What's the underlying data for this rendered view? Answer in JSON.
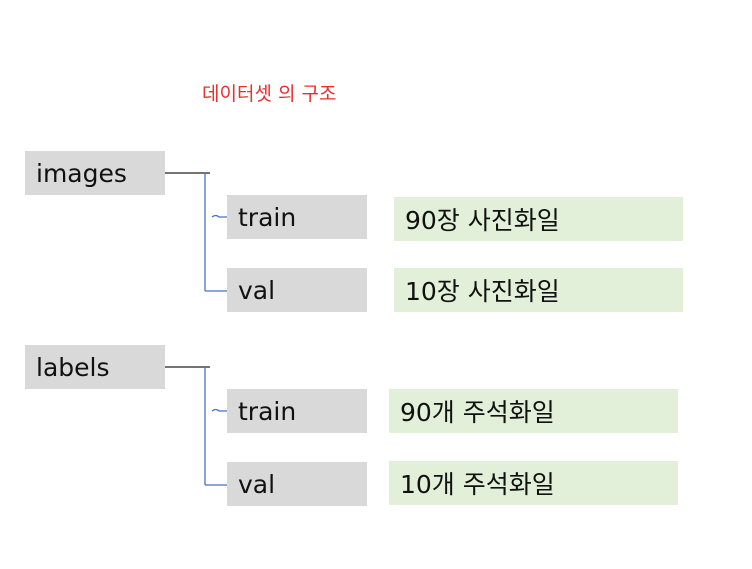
{
  "title": "데이터셋 의 구조",
  "colors": {
    "title": "#e8312b",
    "node_fill": "#d9d9d9",
    "description_fill": "#e2efd9",
    "root_connector": "#222222",
    "child_connector": "#4472c4"
  },
  "groups": [
    {
      "label": "images",
      "children": [
        {
          "label": "train",
          "description": "90장 사진화일"
        },
        {
          "label": "val",
          "description": "10장 사진화일"
        }
      ]
    },
    {
      "label": "labels",
      "children": [
        {
          "label": "train",
          "description": "90개 주석화일"
        },
        {
          "label": "val",
          "description": "10개 주석화일"
        }
      ]
    }
  ]
}
